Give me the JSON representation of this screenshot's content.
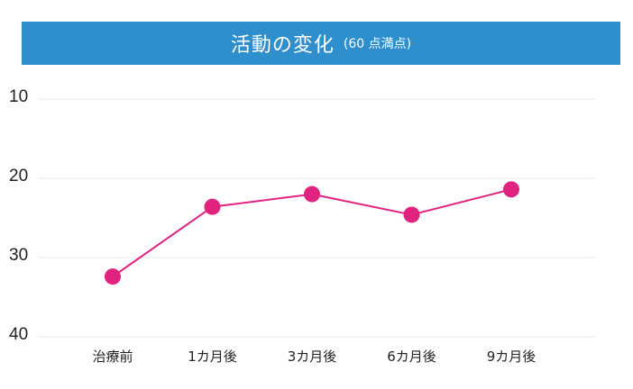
{
  "header": {
    "title": "活動の変化",
    "subtitle": "(60 点満点)",
    "bar_color": "#2f8fcd"
  },
  "chart_data": {
    "type": "line",
    "title": "活動の変化",
    "subtitle": "(60 点満点)",
    "xlabel": "",
    "ylabel": "",
    "categories": [
      "治療前",
      "1カ月後",
      "3カ月後",
      "6カ月後",
      "9カ月後"
    ],
    "series": [
      {
        "values": [
          32.4,
          23.6,
          22.0,
          24.6,
          21.4
        ],
        "color": "#e0237f"
      }
    ],
    "yticks": [
      "10",
      "20",
      "30",
      "40"
    ],
    "ylim": [
      10,
      40
    ],
    "y_inverted": true,
    "grid": true,
    "legend": "none"
  }
}
